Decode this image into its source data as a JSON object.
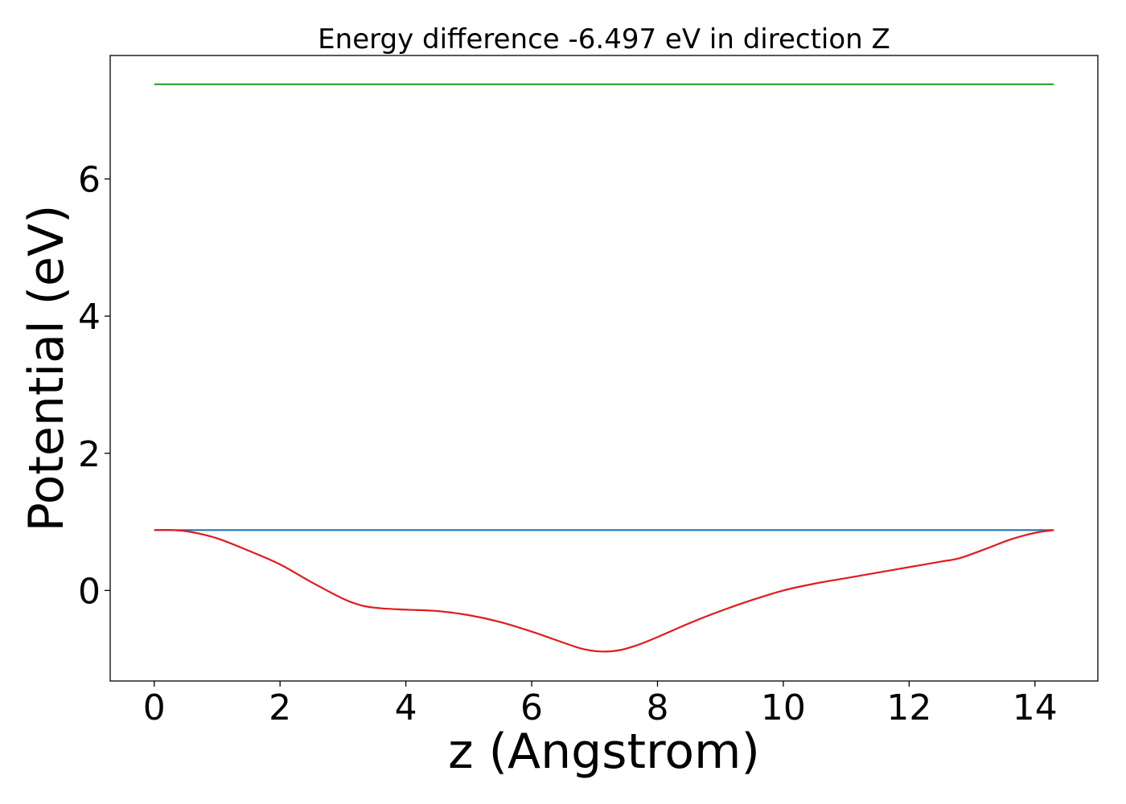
{
  "chart_data": {
    "type": "line",
    "title": "Energy difference -6.497 eV in direction Z",
    "xlabel": "z (Angstrom)",
    "ylabel": "Potential (eV)",
    "xlim": [
      -0.7,
      15.0
    ],
    "ylim": [
      -1.32,
      7.8
    ],
    "xticks": [
      0,
      2,
      4,
      6,
      8,
      10,
      12,
      14
    ],
    "yticks": [
      0,
      2,
      4,
      6
    ],
    "grid": false,
    "colors": {
      "planar_average": "#e31a1c",
      "average_line": "#1f77b4",
      "vacuum_line": "#2ca02c"
    },
    "series": [
      {
        "key": "planar_average",
        "x": [
          0.0,
          0.3,
          0.6,
          1.0,
          1.5,
          2.0,
          2.5,
          3.0,
          3.3,
          3.6,
          4.0,
          4.5,
          5.0,
          5.5,
          6.0,
          6.5,
          6.8,
          7.1,
          7.4,
          7.7,
          8.0,
          8.5,
          9.0,
          9.5,
          10.0,
          10.5,
          11.0,
          11.5,
          12.0,
          12.5,
          12.8,
          13.2,
          13.6,
          14.0,
          14.3
        ],
        "y": [
          0.88,
          0.88,
          0.85,
          0.76,
          0.58,
          0.38,
          0.12,
          -0.12,
          -0.22,
          -0.26,
          -0.28,
          -0.3,
          -0.36,
          -0.46,
          -0.6,
          -0.76,
          -0.85,
          -0.89,
          -0.87,
          -0.79,
          -0.68,
          -0.48,
          -0.3,
          -0.14,
          0.0,
          0.1,
          0.18,
          0.26,
          0.34,
          0.42,
          0.47,
          0.6,
          0.74,
          0.84,
          0.88
        ]
      },
      {
        "key": "average_line",
        "x": [
          0.0,
          14.3
        ],
        "y": [
          0.88,
          0.88
        ]
      },
      {
        "key": "vacuum_line",
        "x": [
          0.0,
          14.3
        ],
        "y": [
          7.38,
          7.38
        ]
      }
    ]
  }
}
